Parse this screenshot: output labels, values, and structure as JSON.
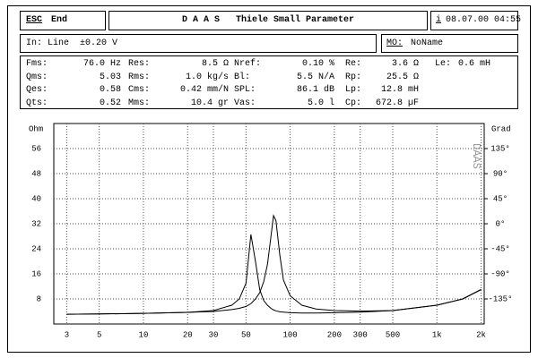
{
  "header": {
    "esc": "ESC",
    "end": "End",
    "title": "D A A S   Thiele Small Parameter",
    "info_icon": "i",
    "datetime": "08.07.00 04:55"
  },
  "status": {
    "input": "In: Line  ±0.20 V",
    "mo_label": "MO:",
    "mo_value": "NoName"
  },
  "parameters": [
    [
      {
        "label": "Fms:",
        "value": "76.0 Hz"
      },
      {
        "label": "Res:",
        "value": "8.5 Ω"
      },
      {
        "label": "Nref:",
        "value": "0.10 %"
      },
      {
        "label": "Re:",
        "value": "3.6 Ω"
      },
      {
        "label": "Le:",
        "value": "0.6 mH"
      }
    ],
    [
      {
        "label": "Qms:",
        "value": "5.03"
      },
      {
        "label": "Rms:",
        "value": "1.0 kg/s"
      },
      {
        "label": "Bl:",
        "value": "5.5 N/A"
      },
      {
        "label": "Rp:",
        "value": "25.5 Ω"
      }
    ],
    [
      {
        "label": "Qes:",
        "value": "0.58"
      },
      {
        "label": "Cms:",
        "value": "0.42 mm/N"
      },
      {
        "label": "SPL:",
        "value": "86.1 dB"
      },
      {
        "label": "Lp:",
        "value": "12.8 mH"
      }
    ],
    [
      {
        "label": "Qts:",
        "value": "0.52"
      },
      {
        "label": "Mms:",
        "value": "10.4 gr"
      },
      {
        "label": "Vas:",
        "value": "5.0 l"
      },
      {
        "label": "Cp:",
        "value": "672.8 µF"
      }
    ]
  ],
  "chart_data": {
    "type": "line",
    "y_label": "Ohm",
    "y2_label": "Grad",
    "watermark": "DAAS",
    "x": [
      3,
      5,
      10,
      20,
      30,
      40,
      45,
      50,
      54,
      58,
      62,
      66,
      70,
      74,
      77,
      80,
      85,
      90,
      100,
      120,
      150,
      200,
      300,
      500,
      1000,
      1500,
      2000
    ],
    "xscale": "log",
    "xlim": [
      2.45,
      2100
    ],
    "xticks": [
      3,
      5,
      10,
      20,
      30,
      50,
      100,
      200,
      300,
      500,
      {
        "value": 1000,
        "label": "1k"
      },
      {
        "value": 2000,
        "label": "2k"
      }
    ],
    "ylim": [
      0,
      64
    ],
    "yticks": [
      8,
      16,
      24,
      32,
      40,
      48,
      56
    ],
    "y2lim": [
      -180,
      180
    ],
    "y2ticks": [
      {
        "value": 135,
        "label": "135°"
      },
      {
        "value": 90,
        "label": "90°"
      },
      {
        "value": 45,
        "label": "45°"
      },
      {
        "value": 0,
        "label": "0°"
      },
      {
        "value": -45,
        "label": "-45°"
      },
      {
        "value": -90,
        "label": "-90°"
      },
      {
        "value": -135,
        "label": "-135°"
      }
    ],
    "grid": true,
    "series": [
      {
        "color": "#000000",
        "values": [
          3.1,
          3.2,
          3.4,
          3.7,
          4.3,
          6,
          8,
          13,
          28.6,
          20,
          11,
          7.5,
          6,
          5,
          4.5,
          4.2,
          3.9,
          3.8,
          3.6,
          3.5,
          3.5,
          3.6,
          3.8,
          4.3,
          6,
          8,
          11
        ]
      },
      {
        "color": "#000000",
        "values": [
          3.1,
          3.2,
          3.4,
          3.7,
          4.0,
          4.6,
          5,
          5.6,
          6.5,
          8,
          10,
          13.5,
          19,
          28,
          34.6,
          33,
          22,
          14,
          9,
          6,
          4.8,
          4.3,
          4.1,
          4.3,
          6,
          8,
          11
        ]
      }
    ]
  }
}
